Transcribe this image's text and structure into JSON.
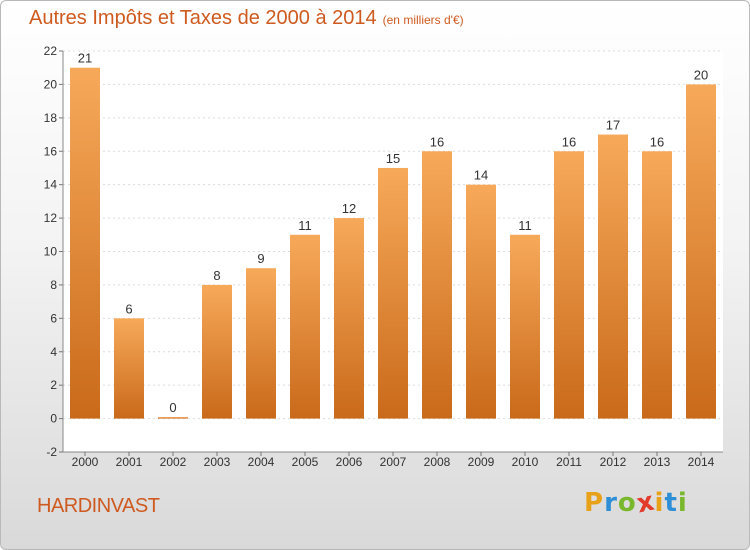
{
  "title": "Autres Impôts et Taxes de 2000 à 2014",
  "subtitle": "(en milliers d'€)",
  "place": "HARDINVAST",
  "logo": {
    "letters": [
      "P",
      "r",
      "o",
      "x",
      "i",
      "t",
      "i"
    ],
    "colors": [
      "#e8a21a",
      "#2f8fd6",
      "#79b82d",
      "#e23b2a",
      "#e8a21a",
      "#2f8fd6",
      "#79b82d"
    ]
  },
  "colors": {
    "bar_top": "#f7a95a",
    "bar_bottom": "#c96a1a",
    "accent": "#cf5a1f"
  },
  "chart_data": {
    "type": "bar",
    "categories": [
      "2000",
      "2001",
      "2002",
      "2003",
      "2004",
      "2005",
      "2006",
      "2007",
      "2008",
      "2009",
      "2010",
      "2011",
      "2012",
      "2013",
      "2014"
    ],
    "values": [
      21,
      6,
      0,
      8,
      9,
      11,
      12,
      15,
      16,
      14,
      11,
      16,
      17,
      16,
      20
    ],
    "ylim": [
      -2,
      22
    ],
    "yticks": [
      -2,
      0,
      2,
      4,
      6,
      8,
      10,
      12,
      14,
      16,
      18,
      20,
      22
    ],
    "grid": true
  }
}
